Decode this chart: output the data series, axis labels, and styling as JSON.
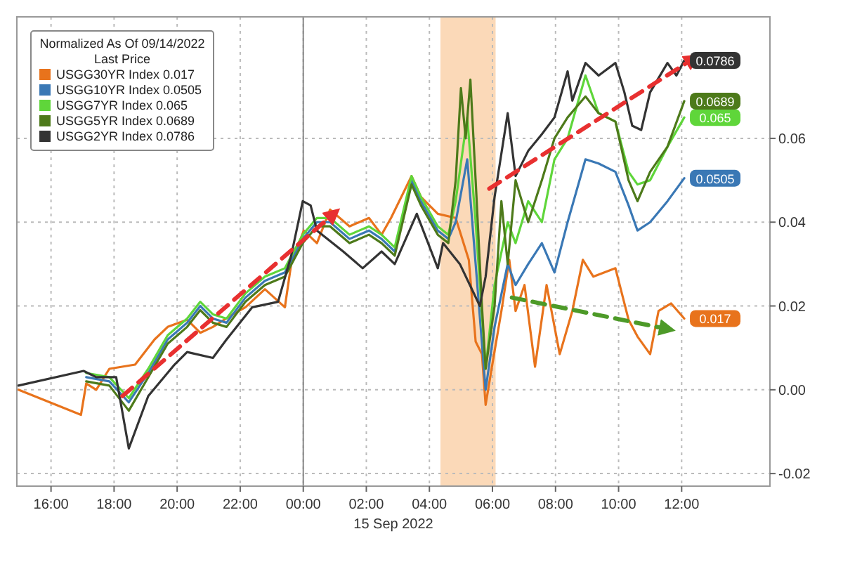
{
  "chart_data": {
    "type": "line",
    "xlabel": "15 Sep 2022",
    "legend_title": "Normalized As Of 09/14/2022\nLast Price",
    "legend": "top left",
    "grid": true,
    "line_style": "solid",
    "xlim": [
      "2022-09-14T14:55",
      "2022-09-15T14:48"
    ],
    "ylim": [
      -0.023,
      0.089
    ],
    "xticks": [
      {
        "value": "2022-09-14T16:00",
        "label": "16:00"
      },
      {
        "value": "2022-09-14T18:00",
        "label": "18:00"
      },
      {
        "value": "2022-09-14T20:00",
        "label": "20:00"
      },
      {
        "value": "2022-09-14T22:00",
        "label": "22:00"
      },
      {
        "value": "2022-09-15T00:00",
        "label": "00:00"
      },
      {
        "value": "2022-09-15T02:00",
        "label": "02:00"
      },
      {
        "value": "2022-09-15T04:00",
        "label": "04:00"
      },
      {
        "value": "2022-09-15T06:00",
        "label": "06:00"
      },
      {
        "value": "2022-09-15T08:00",
        "label": "08:00"
      },
      {
        "value": "2022-09-15T10:00",
        "label": "10:00"
      },
      {
        "value": "2022-09-15T12:00",
        "label": "12:00"
      }
    ],
    "yticks": [
      {
        "value": -0.02,
        "label": "-0.02"
      },
      {
        "value": 0,
        "label": "0.00"
      },
      {
        "value": 0.02,
        "label": "0.02"
      },
      {
        "value": 0.04,
        "label": "0.04"
      },
      {
        "value": 0.06,
        "label": "0.06"
      }
    ],
    "bands": [
      {
        "axis": "x",
        "from": "2022-09-15T04:21",
        "to": "2022-09-15T06:06",
        "color": "#fbd9b8"
      }
    ],
    "ref_lines": [
      {
        "axis": "x",
        "value": "2022-09-15T00:00",
        "color": "#888888",
        "line_style": "solid"
      }
    ],
    "series": [
      {
        "name": "USGG30YR Index 0.017",
        "color": "#e8731c",
        "x": [
          "2022-09-14T14:58",
          "2022-09-14T16:57",
          "2022-09-14T17:07",
          "2022-09-14T17:26",
          "2022-09-14T17:51",
          "2022-09-14T18:40",
          "2022-09-14T19:17",
          "2022-09-14T19:42",
          "2022-09-14T20:19",
          "2022-09-14T20:44",
          "2022-09-14T21:08",
          "2022-09-14T21:46",
          "2022-09-14T22:10",
          "2022-09-14T22:47",
          "2022-09-14T23:25",
          "2022-09-14T23:37",
          "2022-09-15T00:01",
          "2022-09-15T00:26",
          "2022-09-15T00:51",
          "2022-09-15T01:28",
          "2022-09-15T02:05",
          "2022-09-15T02:29",
          "2022-09-15T02:47",
          "2022-09-15T03:26",
          "2022-09-15T03:44",
          "2022-09-15T04:16",
          "2022-09-15T04:50",
          "2022-09-15T05:15",
          "2022-09-15T05:28",
          "2022-09-15T05:40",
          "2022-09-15T05:47",
          "2022-09-15T05:59",
          "2022-09-15T06:17",
          "2022-09-15T06:32",
          "2022-09-15T06:44",
          "2022-09-15T07:01",
          "2022-09-15T07:21",
          "2022-09-15T07:43",
          "2022-09-15T08:08",
          "2022-09-15T08:32",
          "2022-09-15T08:52",
          "2022-09-15T09:12",
          "2022-09-15T09:54",
          "2022-09-15T10:19",
          "2022-09-15T10:36",
          "2022-09-15T11:00",
          "2022-09-15T11:16",
          "2022-09-15T11:40",
          "2022-09-15T12:05"
        ],
        "values": [
          0,
          -0.006,
          0.0015,
          0,
          0.005,
          0.006,
          0.012,
          0.015,
          0.0167,
          0.0136,
          0.015,
          0.018,
          0.0197,
          0.024,
          0.0197,
          0.03,
          0.038,
          0.035,
          0.043,
          0.039,
          0.041,
          0.037,
          0.041,
          0.051,
          0.046,
          0.042,
          0.041,
          0.031,
          0.0115,
          0.0085,
          -0.0036,
          0.0055,
          0.0188,
          0.031,
          0.0188,
          0.025,
          0.0055,
          0.025,
          0.0085,
          0.0188,
          0.031,
          0.027,
          0.029,
          0.0167,
          0.0127,
          0.0085,
          0.0188,
          0.0206,
          0.017
        ],
        "value_labels": [
          null,
          null,
          null,
          null,
          null,
          null,
          null,
          null,
          null,
          null,
          null,
          null,
          null,
          null,
          null,
          null,
          null,
          null,
          null,
          null,
          null,
          null,
          null,
          null,
          null,
          null,
          null,
          null,
          null,
          null,
          null,
          null,
          null,
          null,
          null,
          null,
          null,
          null,
          null,
          null,
          null,
          null,
          null,
          null,
          null,
          null,
          null,
          null,
          "0.017"
        ]
      },
      {
        "name": "USGG10YR Index 0.0505",
        "color": "#3a78b5",
        "x": [
          "2022-09-14T17:07",
          "2022-09-14T17:51",
          "2022-09-14T18:28",
          "2022-09-14T19:05",
          "2022-09-14T19:42",
          "2022-09-14T20:19",
          "2022-09-14T20:44",
          "2022-09-14T21:08",
          "2022-09-14T21:34",
          "2022-09-14T22:10",
          "2022-09-14T22:47",
          "2022-09-14T23:25",
          "2022-09-14T23:59",
          "2022-09-15T00:26",
          "2022-09-15T00:51",
          "2022-09-15T01:28",
          "2022-09-15T02:05",
          "2022-09-15T02:29",
          "2022-09-15T02:54",
          "2022-09-15T03:26",
          "2022-09-15T03:44",
          "2022-09-15T04:16",
          "2022-09-15T04:36",
          "2022-09-15T04:50",
          "2022-09-15T05:12",
          "2022-09-15T05:28",
          "2022-09-15T05:47",
          "2022-09-15T06:04",
          "2022-09-15T06:29",
          "2022-09-15T06:44",
          "2022-09-15T07:08",
          "2022-09-15T07:34",
          "2022-09-15T07:58",
          "2022-09-15T08:23",
          "2022-09-15T08:57",
          "2022-09-15T09:22",
          "2022-09-15T09:54",
          "2022-09-15T10:19",
          "2022-09-15T10:36",
          "2022-09-15T11:00",
          "2022-09-15T11:33",
          "2022-09-15T12:05"
        ],
        "values": [
          0.003,
          0.002,
          -0.003,
          0.004,
          0.012,
          0.016,
          0.02,
          0.017,
          0.016,
          0.022,
          0.026,
          0.028,
          0.036,
          0.04,
          0.04,
          0.036,
          0.038,
          0.036,
          0.033,
          0.05,
          0.045,
          0.038,
          0.036,
          0.04,
          0.055,
          0.03,
          0,
          0.015,
          0.03,
          0.025,
          0.03,
          0.035,
          0.028,
          0.04,
          0.055,
          0.054,
          0.052,
          0.044,
          0.038,
          0.04,
          0.045,
          0.0505
        ],
        "value_labels": [
          null,
          null,
          null,
          null,
          null,
          null,
          null,
          null,
          null,
          null,
          null,
          null,
          null,
          null,
          null,
          null,
          null,
          null,
          null,
          null,
          null,
          null,
          null,
          null,
          null,
          null,
          null,
          null,
          null,
          null,
          null,
          null,
          null,
          null,
          null,
          null,
          null,
          null,
          null,
          null,
          null,
          "0.0505"
        ]
      },
      {
        "name": "USGG7YR Index 0.065",
        "color": "#5fd63a",
        "x": [
          "2022-09-14T17:07",
          "2022-09-14T17:51",
          "2022-09-14T18:28",
          "2022-09-14T19:05",
          "2022-09-14T19:42",
          "2022-09-14T20:19",
          "2022-09-14T20:44",
          "2022-09-14T21:08",
          "2022-09-14T21:34",
          "2022-09-14T22:10",
          "2022-09-14T22:47",
          "2022-09-14T23:25",
          "2022-09-14T23:59",
          "2022-09-15T00:26",
          "2022-09-15T00:51",
          "2022-09-15T01:28",
          "2022-09-15T02:05",
          "2022-09-15T02:29",
          "2022-09-15T02:54",
          "2022-09-15T03:26",
          "2022-09-15T03:44",
          "2022-09-15T04:16",
          "2022-09-15T04:36",
          "2022-09-15T04:50",
          "2022-09-15T05:12",
          "2022-09-15T05:28",
          "2022-09-15T05:47",
          "2022-09-15T06:04",
          "2022-09-15T06:29",
          "2022-09-15T06:44",
          "2022-09-15T07:08",
          "2022-09-15T07:34",
          "2022-09-15T07:58",
          "2022-09-15T08:23",
          "2022-09-15T08:57",
          "2022-09-15T09:22",
          "2022-09-15T09:54",
          "2022-09-15T10:19",
          "2022-09-15T10:36",
          "2022-09-15T11:00",
          "2022-09-15T11:33",
          "2022-09-15T12:05"
        ],
        "values": [
          0.004,
          0.003,
          -0.002,
          0.005,
          0.013,
          0.017,
          0.021,
          0.018,
          0.017,
          0.023,
          0.027,
          0.029,
          0.037,
          0.041,
          0.041,
          0.037,
          0.039,
          0.037,
          0.034,
          0.051,
          0.046,
          0.039,
          0.037,
          0.045,
          0.065,
          0.04,
          0.005,
          0.025,
          0.04,
          0.035,
          0.045,
          0.04,
          0.055,
          0.06,
          0.075,
          0.066,
          0.064,
          0.052,
          0.049,
          0.05,
          0.058,
          0.065
        ],
        "value_labels": [
          null,
          null,
          null,
          null,
          null,
          null,
          null,
          null,
          null,
          null,
          null,
          null,
          null,
          null,
          null,
          null,
          null,
          null,
          null,
          null,
          null,
          null,
          null,
          null,
          null,
          null,
          null,
          null,
          null,
          null,
          null,
          null,
          null,
          null,
          null,
          null,
          null,
          null,
          null,
          null,
          null,
          "0.065"
        ]
      },
      {
        "name": "USGG5YR Index 0.0689",
        "color": "#4d7a1a",
        "x": [
          "2022-09-14T17:07",
          "2022-09-14T17:51",
          "2022-09-14T18:28",
          "2022-09-14T19:05",
          "2022-09-14T19:42",
          "2022-09-14T20:19",
          "2022-09-14T20:44",
          "2022-09-14T21:08",
          "2022-09-14T21:34",
          "2022-09-14T22:10",
          "2022-09-14T22:47",
          "2022-09-14T23:25",
          "2022-09-14T23:59",
          "2022-09-15T00:26",
          "2022-09-15T00:51",
          "2022-09-15T01:28",
          "2022-09-15T02:05",
          "2022-09-15T02:29",
          "2022-09-15T02:54",
          "2022-09-15T03:26",
          "2022-09-15T03:44",
          "2022-09-15T04:16",
          "2022-09-15T04:36",
          "2022-09-15T04:50",
          "2022-09-15T05:00",
          "2022-09-15T05:09",
          "2022-09-15T05:18",
          "2022-09-15T05:28",
          "2022-09-15T05:40",
          "2022-09-15T05:47",
          "2022-09-15T06:04",
          "2022-09-15T06:17",
          "2022-09-15T06:29",
          "2022-09-15T06:44",
          "2022-09-15T07:08",
          "2022-09-15T07:34",
          "2022-09-15T07:58",
          "2022-09-15T08:23",
          "2022-09-15T08:57",
          "2022-09-15T09:22",
          "2022-09-15T09:54",
          "2022-09-15T10:19",
          "2022-09-15T10:36",
          "2022-09-15T11:00",
          "2022-09-15T11:33",
          "2022-09-15T12:05"
        ],
        "values": [
          0.002,
          0.001,
          -0.005,
          0.003,
          0.011,
          0.015,
          0.019,
          0.016,
          0.015,
          0.021,
          0.025,
          0.027,
          0.035,
          0.039,
          0.039,
          0.035,
          0.037,
          0.035,
          0.032,
          0.049,
          0.044,
          0.037,
          0.035,
          0.05,
          0.072,
          0.06,
          0.074,
          0.05,
          0.02,
          0.005,
          0.02,
          0.045,
          0.03,
          0.05,
          0.04,
          0.05,
          0.06,
          0.065,
          0.07,
          0.066,
          0.064,
          0.05,
          0.045,
          0.052,
          0.058,
          0.0689
        ],
        "value_labels": [
          null,
          null,
          null,
          null,
          null,
          null,
          null,
          null,
          null,
          null,
          null,
          null,
          null,
          null,
          null,
          null,
          null,
          null,
          null,
          null,
          null,
          null,
          null,
          null,
          null,
          null,
          null,
          null,
          null,
          null,
          null,
          null,
          null,
          null,
          null,
          null,
          null,
          null,
          null,
          null,
          null,
          null,
          null,
          null,
          null,
          "0.0689"
        ]
      },
      {
        "name": "USGG2YR Index 0.0786",
        "color": "#333333",
        "x": [
          "2022-09-14T14:58",
          "2022-09-14T17:02",
          "2022-09-14T17:26",
          "2022-09-14T18:04",
          "2022-09-14T18:28",
          "2022-09-14T19:05",
          "2022-09-14T19:55",
          "2022-09-14T20:19",
          "2022-09-14T21:08",
          "2022-09-14T21:34",
          "2022-09-14T22:23",
          "2022-09-14T23:12",
          "2022-09-14T23:37",
          "2022-09-14T23:59",
          "2022-09-15T00:14",
          "2022-09-15T00:26",
          "2022-09-15T01:16",
          "2022-09-15T01:53",
          "2022-09-15T02:29",
          "2022-09-15T02:54",
          "2022-09-15T03:36",
          "2022-09-15T04:16",
          "2022-09-15T04:26",
          "2022-09-15T04:58",
          "2022-09-15T05:36",
          "2022-09-15T05:47",
          "2022-09-15T06:04",
          "2022-09-15T06:29",
          "2022-09-15T06:44",
          "2022-09-15T07:08",
          "2022-09-15T07:34",
          "2022-09-15T07:58",
          "2022-09-15T08:23",
          "2022-09-15T08:32",
          "2022-09-15T08:57",
          "2022-09-15T09:22",
          "2022-09-15T09:54",
          "2022-09-15T10:11",
          "2022-09-15T10:26",
          "2022-09-15T10:43",
          "2022-09-15T11:00",
          "2022-09-15T11:33",
          "2022-09-15T11:50",
          "2022-09-15T12:05"
        ],
        "values": [
          0.001,
          0.0045,
          0.003,
          0.003,
          -0.014,
          -0.0015,
          0.006,
          0.009,
          0.0076,
          0.012,
          0.0197,
          0.021,
          0.032,
          0.045,
          0.044,
          0.038,
          0.033,
          0.029,
          0.033,
          0.03,
          0.042,
          0.029,
          0.035,
          0.03,
          0.02,
          0.027,
          0.046,
          0.066,
          0.051,
          0.057,
          0.061,
          0.065,
          0.076,
          0.069,
          0.078,
          0.075,
          0.078,
          0.071,
          0.063,
          0.062,
          0.071,
          0.078,
          0.075,
          0.0786
        ],
        "value_labels": [
          null,
          null,
          null,
          null,
          null,
          null,
          null,
          null,
          null,
          null,
          null,
          null,
          null,
          null,
          null,
          null,
          null,
          null,
          null,
          null,
          null,
          null,
          null,
          null,
          null,
          null,
          null,
          null,
          null,
          null,
          null,
          null,
          null,
          null,
          null,
          null,
          null,
          null,
          null,
          null,
          null,
          null,
          null,
          "0.0786"
        ]
      },
      {
        "type": "line",
        "color": "#e83030",
        "line_style": "dashed",
        "x": [
          "2022-09-14T18:16",
          "2022-09-15T00:58"
        ],
        "values": [
          -0.0015,
          0.042
        ]
      },
      {
        "type": "line",
        "color": "#e83030",
        "line_style": "dashed",
        "x": [
          "2022-09-15T05:54",
          "2022-09-15T12:22"
        ],
        "values": [
          0.048,
          0.079
        ]
      },
      {
        "type": "line",
        "color": "#4d9a28",
        "line_style": "dashed",
        "x": [
          "2022-09-15T06:37",
          "2022-09-15T11:33"
        ],
        "values": [
          0.022,
          0.0145
        ]
      }
    ]
  }
}
